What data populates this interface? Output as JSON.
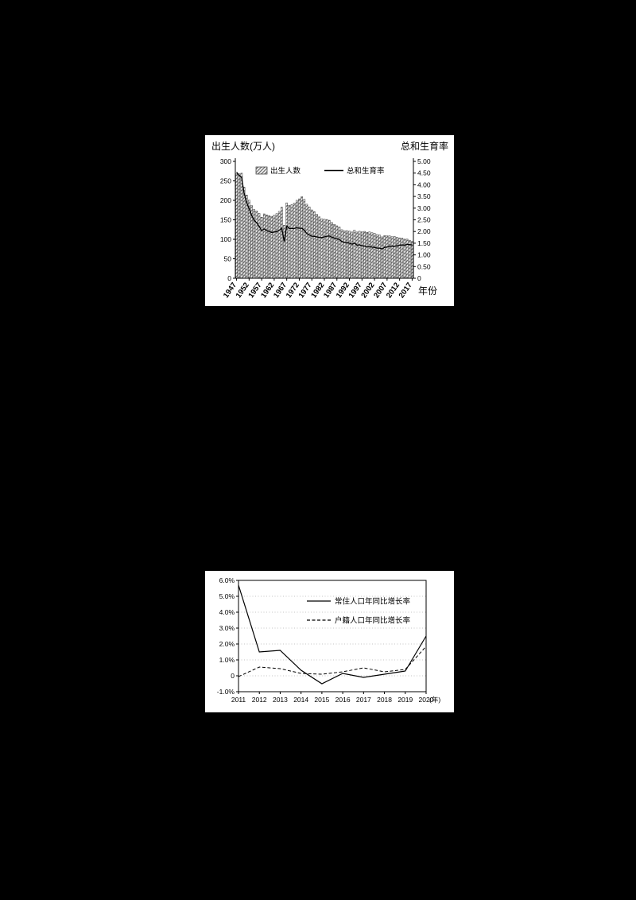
{
  "page": {
    "background": "#000000",
    "panel_background": "#ffffff",
    "line_color": "#000000"
  },
  "chart_data": [
    {
      "id": "birth-fertility",
      "type": "bar+line",
      "left_axis_title": "出生人数(万人)",
      "right_axis_title": "总和生育率",
      "x_axis": {
        "label": "年份",
        "ticks": [
          1947,
          1952,
          1957,
          1962,
          1967,
          1972,
          1977,
          1982,
          1987,
          1992,
          1997,
          2002,
          2007,
          2012,
          2017
        ]
      },
      "left_axis": {
        "min": 0,
        "max": 300,
        "ticks": [
          {
            "v": 0,
            "label": "0"
          },
          {
            "v": 50,
            "label": "50"
          },
          {
            "v": 100,
            "label": "100"
          },
          {
            "v": 150,
            "label": "150"
          },
          {
            "v": 200,
            "label": "200"
          },
          {
            "v": 250,
            "label": "250"
          },
          {
            "v": 300,
            "label": "300"
          }
        ]
      },
      "right_axis": {
        "min": 0,
        "max": 5,
        "ticks": [
          {
            "v": 0,
            "label": "0"
          },
          {
            "v": 0.5,
            "label": "0.50"
          },
          {
            "v": 1,
            "label": "1.00"
          },
          {
            "v": 1.5,
            "label": "1.50"
          },
          {
            "v": 2,
            "label": "2.00"
          },
          {
            "v": 2.5,
            "label": "2.50"
          },
          {
            "v": 3,
            "label": "3.00"
          },
          {
            "v": 3.5,
            "label": "3.50"
          },
          {
            "v": 4,
            "label": "4.00"
          },
          {
            "v": 4.5,
            "label": "4.50"
          },
          {
            "v": 5,
            "label": "5.00"
          }
        ]
      },
      "years": [
        1947,
        1948,
        1949,
        1950,
        1951,
        1952,
        1953,
        1954,
        1955,
        1956,
        1957,
        1958,
        1959,
        1960,
        1961,
        1962,
        1963,
        1964,
        1965,
        1966,
        1967,
        1968,
        1969,
        1970,
        1971,
        1972,
        1973,
        1974,
        1975,
        1976,
        1977,
        1978,
        1979,
        1980,
        1981,
        1982,
        1983,
        1984,
        1985,
        1986,
        1987,
        1988,
        1989,
        1990,
        1991,
        1992,
        1993,
        1994,
        1995,
        1996,
        1997,
        1998,
        1999,
        2000,
        2001,
        2002,
        2003,
        2004,
        2005,
        2006,
        2007,
        2008,
        2009,
        2010,
        2011,
        2012,
        2013,
        2014,
        2015,
        2016,
        2017
      ],
      "series": [
        {
          "name": "出生人数",
          "type": "bar",
          "axis": "left",
          "values": [
            267.9,
            268.2,
            269.7,
            233.8,
            213.8,
            200.5,
            186.8,
            176.9,
            173.1,
            166.5,
            156.7,
            165.3,
            162.6,
            160.6,
            158.9,
            161.8,
            165.9,
            171.7,
            182.4,
            136.1,
            193.6,
            187.2,
            188.9,
            193.4,
            200.1,
            203.9,
            209.2,
            202.9,
            190.1,
            183.3,
            175.5,
            170.9,
            164.3,
            157.7,
            152.9,
            151.5,
            150.9,
            148.9,
            143.2,
            138.3,
            134.7,
            131.4,
            124.7,
            122.2,
            122.3,
            120.9,
            118.8,
            123.8,
            118.7,
            120.7,
            119.2,
            120.3,
            117.8,
            119.1,
            117.1,
            115.4,
            112.4,
            111.1,
            106.3,
            109.3,
            109.0,
            109.1,
            107.0,
            107.1,
            105.1,
            103.7,
            103.0,
            100.4,
            100.6,
            97.7,
            94.6
          ]
        },
        {
          "name": "总和生育率",
          "type": "line",
          "axis": "right",
          "values": [
            4.54,
            4.4,
            4.32,
            3.65,
            3.26,
            2.98,
            2.69,
            2.48,
            2.37,
            2.22,
            2.04,
            2.11,
            2.04,
            2.0,
            1.96,
            1.98,
            2.0,
            2.05,
            2.14,
            1.58,
            2.23,
            2.13,
            2.13,
            2.13,
            2.16,
            2.14,
            2.14,
            2.05,
            1.91,
            1.85,
            1.8,
            1.79,
            1.77,
            1.75,
            1.74,
            1.77,
            1.8,
            1.81,
            1.76,
            1.72,
            1.69,
            1.66,
            1.57,
            1.54,
            1.53,
            1.5,
            1.46,
            1.5,
            1.42,
            1.43,
            1.39,
            1.38,
            1.34,
            1.36,
            1.33,
            1.32,
            1.29,
            1.29,
            1.26,
            1.32,
            1.34,
            1.37,
            1.37,
            1.37,
            1.39,
            1.41,
            1.43,
            1.42,
            1.45,
            1.44,
            1.43
          ]
        }
      ],
      "legend_position": "top-inside",
      "grid": "off"
    },
    {
      "id": "population-growth",
      "type": "line",
      "x_axis_label": "(年)",
      "x": [
        2011,
        2012,
        2013,
        2014,
        2015,
        2016,
        2017,
        2018,
        2019,
        2020
      ],
      "ylim": [
        -1.0,
        6.0
      ],
      "yticks": [
        {
          "v": 6,
          "label": "6.0%"
        },
        {
          "v": 5,
          "label": "5.0%"
        },
        {
          "v": 4,
          "label": "4.0%"
        },
        {
          "v": 3,
          "label": "3.0%"
        },
        {
          "v": 2,
          "label": "2.0%"
        },
        {
          "v": 1,
          "label": "1.0%"
        },
        {
          "v": 0,
          "label": "0"
        },
        {
          "v": -1,
          "label": "-1.0%"
        }
      ],
      "grid": "dotted-horizontal",
      "series": [
        {
          "name": "常住人口年同比增长率",
          "style": "solid",
          "values": [
            5.7,
            1.5,
            1.6,
            0.35,
            -0.5,
            0.15,
            -0.1,
            0.1,
            0.3,
            2.5
          ]
        },
        {
          "name": "户籍人口年同比增长率",
          "style": "dashed",
          "values": [
            -0.05,
            0.55,
            0.45,
            0.15,
            0.1,
            0.25,
            0.5,
            0.25,
            0.4,
            1.85
          ]
        }
      ],
      "legend_position": "top-inside-right"
    }
  ]
}
